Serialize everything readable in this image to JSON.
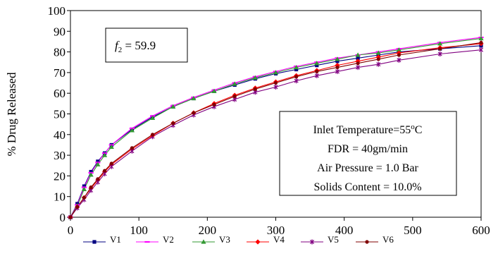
{
  "chart_data": {
    "type": "line",
    "title": "",
    "xlabel": "",
    "ylabel": "% Drug Released",
    "xlim": [
      0,
      600
    ],
    "ylim": [
      0,
      100
    ],
    "xticks": [
      0,
      100,
      200,
      300,
      400,
      500,
      600
    ],
    "yticks": [
      0,
      10,
      20,
      30,
      40,
      50,
      60,
      70,
      80,
      90,
      100
    ],
    "grid": false,
    "legend_position": "bottom",
    "series": [
      {
        "name": "V1",
        "color": "#000080",
        "marker": "square",
        "x": [
          0,
          10,
          20,
          30,
          40,
          50,
          60,
          90,
          120,
          150,
          180,
          210,
          240,
          270,
          300,
          330,
          360,
          390,
          420,
          450,
          480,
          540,
          600
        ],
        "y": [
          0,
          6.5,
          15,
          22,
          27,
          31,
          35,
          42.5,
          48.5,
          53.5,
          57.5,
          61,
          64,
          67,
          69.5,
          71.5,
          73.5,
          75.5,
          77,
          78.5,
          80,
          81.5,
          83
        ]
      },
      {
        "name": "V2",
        "color": "#FF00FF",
        "marker": "dash",
        "x": [
          0,
          10,
          20,
          30,
          40,
          50,
          60,
          90,
          120,
          150,
          180,
          210,
          240,
          270,
          300,
          330,
          360,
          390,
          420,
          450,
          480,
          540,
          600
        ],
        "y": [
          0,
          6,
          14.5,
          21.5,
          26.5,
          31,
          35,
          43,
          49,
          54,
          58,
          61.5,
          65,
          68,
          70.5,
          73,
          75,
          77,
          78.5,
          80,
          81.5,
          84.5,
          87
        ]
      },
      {
        "name": "V3",
        "color": "#339933",
        "marker": "triangle",
        "x": [
          0,
          10,
          20,
          30,
          40,
          50,
          60,
          90,
          120,
          150,
          180,
          210,
          240,
          270,
          300,
          330,
          360,
          390,
          420,
          450,
          480,
          540,
          600
        ],
        "y": [
          0,
          5.5,
          13.5,
          20.5,
          25.5,
          30,
          34,
          42,
          48,
          53.5,
          57.5,
          61,
          64.5,
          67.5,
          70,
          72.5,
          74.5,
          76.5,
          78.5,
          79.5,
          81,
          84,
          86.5
        ]
      },
      {
        "name": "V4",
        "color": "#FF0000",
        "marker": "diamond",
        "x": [
          0,
          10,
          20,
          30,
          40,
          50,
          60,
          90,
          120,
          150,
          180,
          210,
          240,
          270,
          300,
          330,
          360,
          390,
          420,
          450,
          480,
          540,
          600
        ],
        "y": [
          0,
          5,
          9.5,
          14,
          18,
          22,
          25.5,
          33,
          39.5,
          45.5,
          50.5,
          55,
          59,
          62.5,
          65.5,
          68.5,
          71,
          73.5,
          75.5,
          77.5,
          79.5,
          82,
          84
        ]
      },
      {
        "name": "V5",
        "color": "#800080",
        "marker": "asterisk",
        "x": [
          0,
          10,
          20,
          30,
          40,
          50,
          60,
          90,
          120,
          150,
          180,
          210,
          240,
          270,
          300,
          330,
          360,
          390,
          420,
          450,
          480,
          540,
          600
        ],
        "y": [
          0,
          4.5,
          8.5,
          13,
          17,
          21,
          24.5,
          32,
          39,
          44.5,
          49.5,
          53.5,
          57,
          60.5,
          63,
          66,
          68.5,
          70.5,
          72.5,
          74,
          76,
          79,
          81
        ]
      },
      {
        "name": "V6",
        "color": "#800000",
        "marker": "circle",
        "x": [
          0,
          10,
          20,
          30,
          40,
          50,
          60,
          90,
          120,
          150,
          180,
          210,
          240,
          270,
          300,
          330,
          360,
          390,
          420,
          450,
          480,
          540,
          600
        ],
        "y": [
          0,
          5,
          9.5,
          14.5,
          18.5,
          22.5,
          26,
          33.5,
          40,
          45.5,
          50.5,
          54.5,
          58.5,
          62,
          65,
          68,
          70.5,
          72.5,
          74.5,
          76.5,
          78.5,
          81.5,
          84.5
        ]
      }
    ],
    "annotations": {
      "f2_label": "f",
      "f2_sub": "2",
      "f2_value": " = 59.9",
      "conditions": [
        "Inlet Temperature=55",
        "FDR = 40gm/min",
        "Air Pressure = 1.0 Bar",
        "Solids Content = 10.0%"
      ],
      "degree_sup": "o",
      "degree_unit": "C"
    }
  }
}
